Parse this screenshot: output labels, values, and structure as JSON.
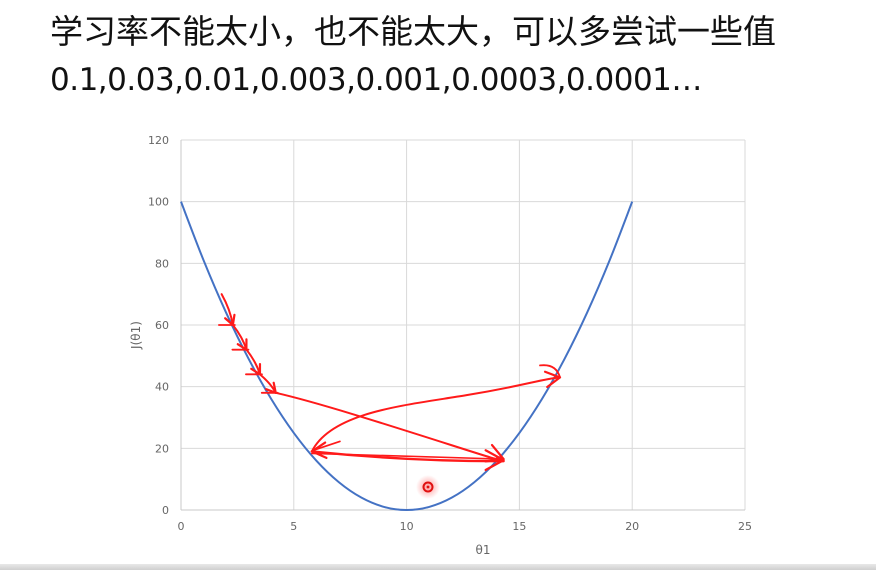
{
  "slide": {
    "title": "学习率不能太小，也不能太大，可以多尝试一些值",
    "rates_text": "0.1,0.03,0.01,0.003,0.001,0.0003,0.0001…"
  },
  "chart_data": {
    "type": "line",
    "xlabel": "θ1",
    "ylabel": "J(θ1)",
    "xlim": [
      0,
      25
    ],
    "ylim": [
      0,
      120
    ],
    "x_ticks": [
      "0",
      "5",
      "10",
      "15",
      "20",
      "25"
    ],
    "y_ticks": [
      "0",
      "20",
      "40",
      "60",
      "80",
      "100",
      "120"
    ],
    "grid": true,
    "series": [
      {
        "color": "#4472c4",
        "x": [
          0,
          1,
          2,
          3,
          4,
          5,
          6,
          7,
          8,
          9,
          10,
          11,
          12,
          13,
          14,
          15,
          16,
          17,
          18,
          19,
          20
        ],
        "values": [
          100,
          81,
          64,
          49,
          36,
          25,
          16,
          9,
          4,
          1,
          0,
          1,
          4,
          9,
          16,
          25,
          36,
          49,
          64,
          81,
          100
        ]
      }
    ],
    "annotations": {
      "color": "#ff1a1a",
      "small_steps": [
        [
          1.8,
          70
        ],
        [
          2.3,
          60
        ],
        [
          2.9,
          52
        ],
        [
          3.5,
          44
        ],
        [
          4.2,
          38
        ]
      ],
      "overshoot_path": [
        [
          4.2,
          38
        ],
        [
          6,
          35
        ],
        [
          9,
          28
        ],
        [
          12,
          21
        ],
        [
          14.3,
          16.5
        ],
        [
          5.8,
          19
        ],
        [
          10,
          34
        ],
        [
          16.8,
          43
        ]
      ]
    }
  }
}
